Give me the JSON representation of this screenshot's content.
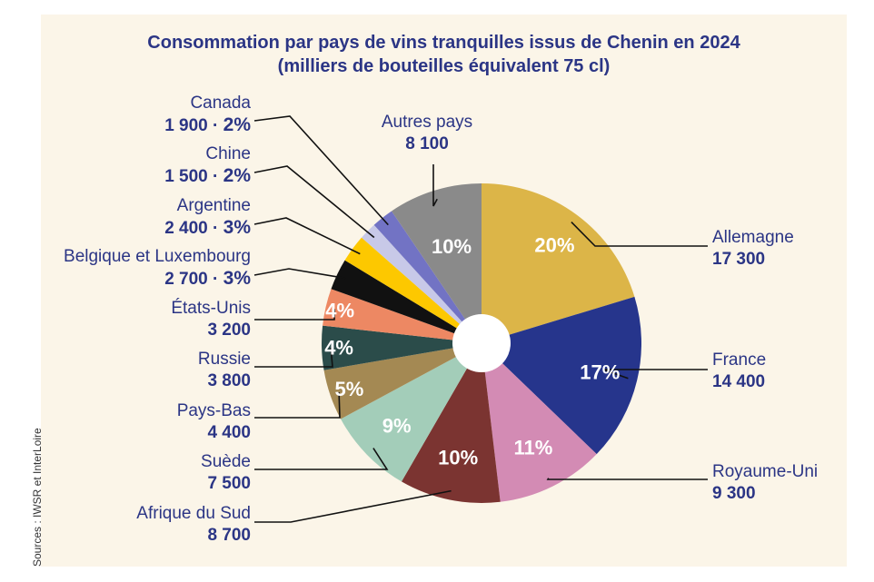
{
  "chart_data": {
    "type": "pie",
    "title": "Consommation par pays de vins tranquilles issus de Chenin en 2024",
    "subtitle": "(milliers de bouteilles équivalent 75 cl)",
    "source": "Sources : IWSR et InterLoire",
    "slices": [
      {
        "name": "Allemagne",
        "value": 17300,
        "value_label": "17 300",
        "percent": "20%",
        "color": "#dcb548"
      },
      {
        "name": "France",
        "value": 14400,
        "value_label": "14 400",
        "percent": "17%",
        "color": "#26358c"
      },
      {
        "name": "Royaume-Uni",
        "value": 9300,
        "value_label": "9 300",
        "percent": "11%",
        "color": "#d38bb4"
      },
      {
        "name": "Afrique du Sud",
        "value": 8700,
        "value_label": "8 700",
        "percent": "10%",
        "color": "#7b3431"
      },
      {
        "name": "Suède",
        "value": 7500,
        "value_label": "7 500",
        "percent": "9%",
        "color": "#a3cdb9"
      },
      {
        "name": "Pays-Bas",
        "value": 4400,
        "value_label": "4 400",
        "percent": "5%",
        "color": "#a48953"
      },
      {
        "name": "Russie",
        "value": 3800,
        "value_label": "3 800",
        "percent": "4%",
        "color": "#2b4c4a"
      },
      {
        "name": "États-Unis",
        "value": 3200,
        "value_label": "3 200",
        "percent": "4%",
        "color": "#ed8863"
      },
      {
        "name": "Belgique et Luxembourg",
        "value": 2700,
        "value_label": "2 700 · ",
        "percent": "3%",
        "color": "#111111"
      },
      {
        "name": "Argentine",
        "value": 2400,
        "value_label": "2 400 · ",
        "percent": "3%",
        "color": "#fdc800"
      },
      {
        "name": "Chine",
        "value": 1500,
        "value_label": "1 500 · ",
        "percent": "2%",
        "color": "#c8c9e8"
      },
      {
        "name": "Canada",
        "value": 1900,
        "value_label": "1 900 · ",
        "percent": "2%",
        "color": "#7273c4"
      },
      {
        "name": "Autres pays",
        "value": 8100,
        "value_label": "8 100",
        "percent": "10%",
        "color": "#8a8a8a"
      }
    ]
  }
}
